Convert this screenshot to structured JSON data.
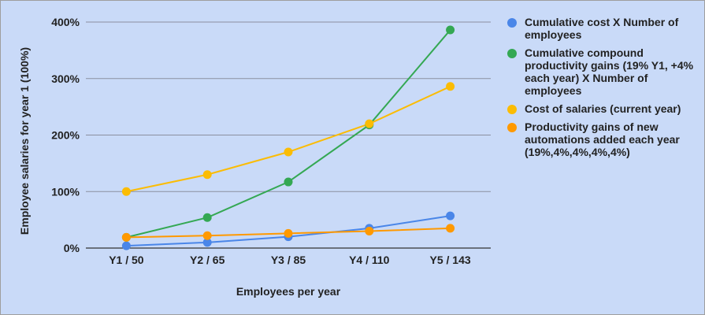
{
  "chart_data": {
    "type": "line",
    "title": "",
    "xlabel": "Employees per year",
    "ylabel": "Employee salaries for year 1 (100%)",
    "categories": [
      "Y1 / 50",
      "Y2 / 65",
      "Y3 / 85",
      "Y4 / 110",
      "Y5 / 143"
    ],
    "ylim": [
      0,
      400
    ],
    "yticks": [
      0,
      100,
      200,
      300,
      400
    ],
    "ytick_labels": [
      "0%",
      "100%",
      "200%",
      "300%",
      "400%"
    ],
    "grid": true,
    "legend_position": "right",
    "series": [
      {
        "name": "Cumulative cost X Number of employees",
        "color": "#4a86e8",
        "values": [
          4,
          10,
          20,
          35,
          57
        ]
      },
      {
        "name": "Cumulative compound productivity gains (19% Y1, +4% each year) X Number of employees",
        "color": "#34a853",
        "values": [
          19,
          54,
          117,
          218,
          386
        ]
      },
      {
        "name": "Cost of salaries (current year)",
        "color": "#fbbc04",
        "values": [
          100,
          130,
          170,
          220,
          286
        ]
      },
      {
        "name": "Productivity gains of new automations added each year (19%,4%,4%,4%,4%)",
        "color": "#ff9900",
        "values": [
          19,
          22,
          26,
          30,
          35
        ]
      }
    ]
  }
}
